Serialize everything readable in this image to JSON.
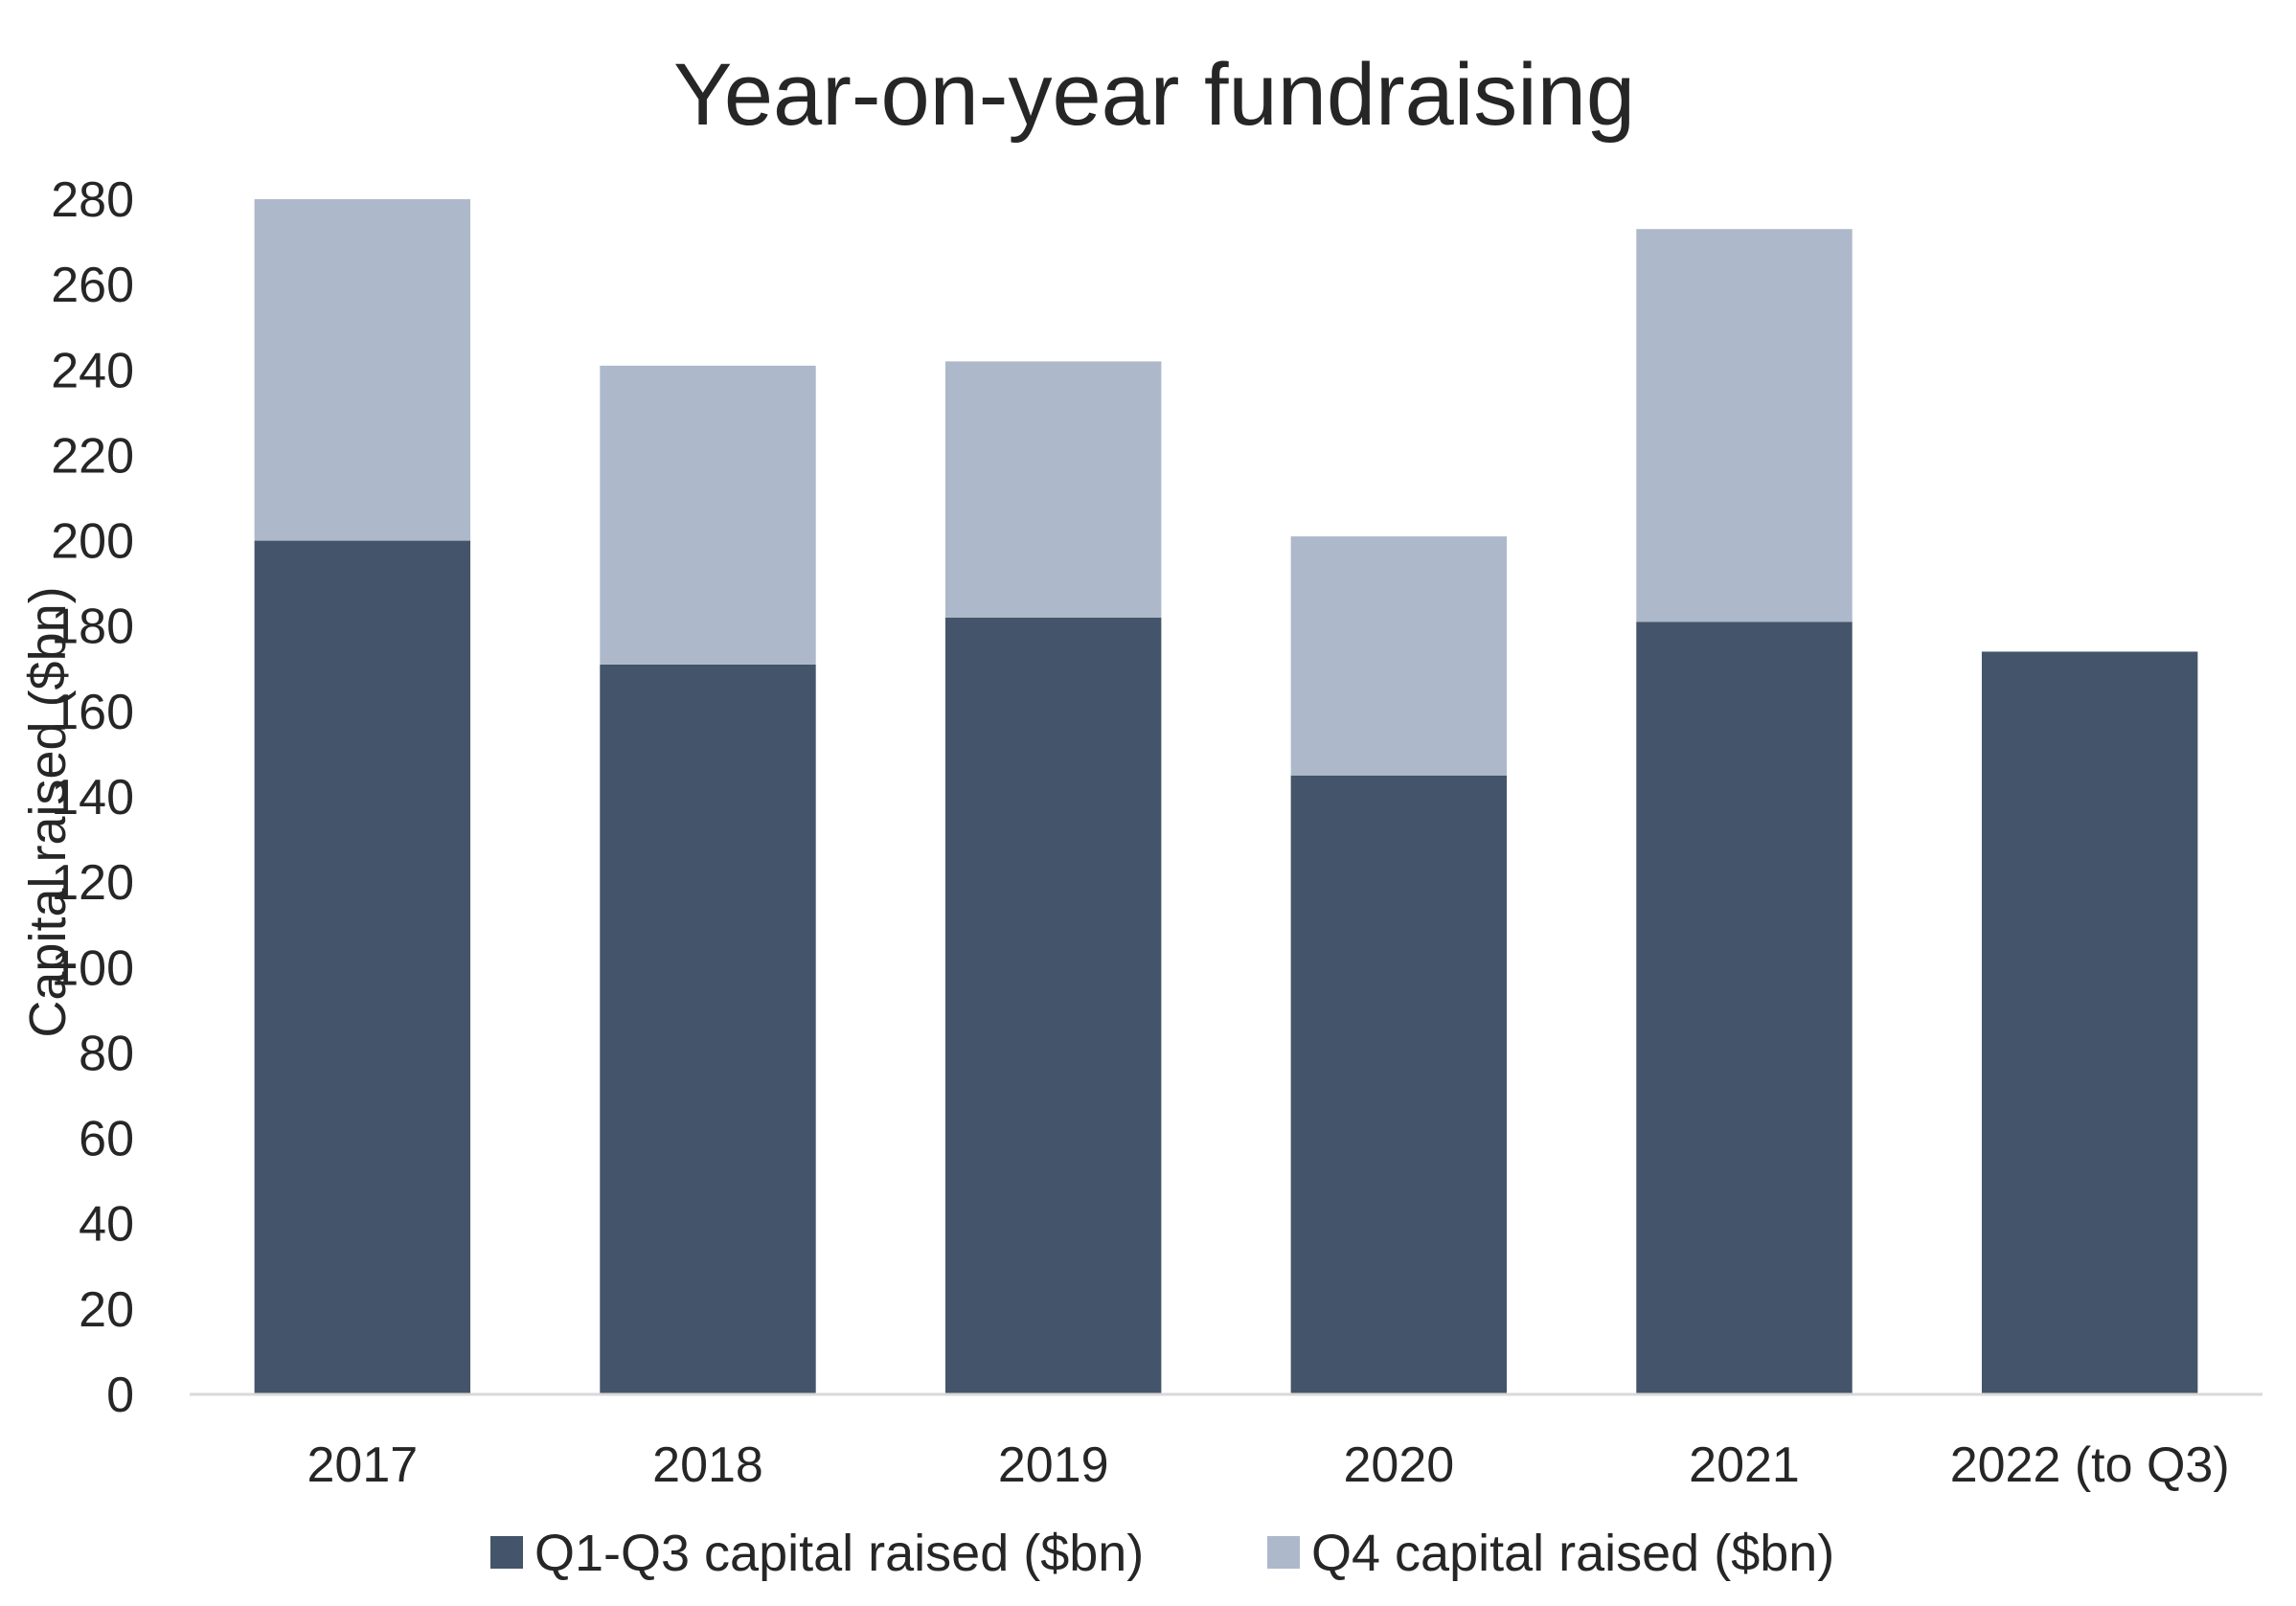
{
  "colors": {
    "q1_q3": "#44546a",
    "q4": "#adb9ca",
    "axis_line": "#d9d9d9",
    "text": "#262626"
  },
  "chart_data": {
    "type": "bar",
    "stacked": true,
    "title": "Year-on-year fundraising",
    "xlabel": "",
    "ylabel": "Capital raised ($bn)",
    "ylim": [
      0,
      280
    ],
    "y_ticks": [
      0,
      20,
      40,
      60,
      80,
      100,
      120,
      140,
      160,
      180,
      200,
      220,
      240,
      260,
      280
    ],
    "y_tick_labels": [
      "0",
      "20",
      "40",
      "60",
      "80",
      "100",
      "120",
      "140",
      "160",
      "180",
      "200",
      "220",
      "240",
      "260",
      "280"
    ],
    "grid": false,
    "legend_position": "bottom",
    "categories": [
      "2017",
      "2018",
      "2019",
      "2020",
      "2021",
      "2022 (to Q3)"
    ],
    "series": [
      {
        "name": "Q1-Q3 capital raised ($bn)",
        "color": "#44546a",
        "values": [
          200,
          171,
          182,
          145,
          181,
          174
        ]
      },
      {
        "name": "Q4 capital raised ($bn)",
        "color": "#adb9ca",
        "values": [
          80,
          70,
          60,
          56,
          92,
          0
        ]
      }
    ]
  }
}
